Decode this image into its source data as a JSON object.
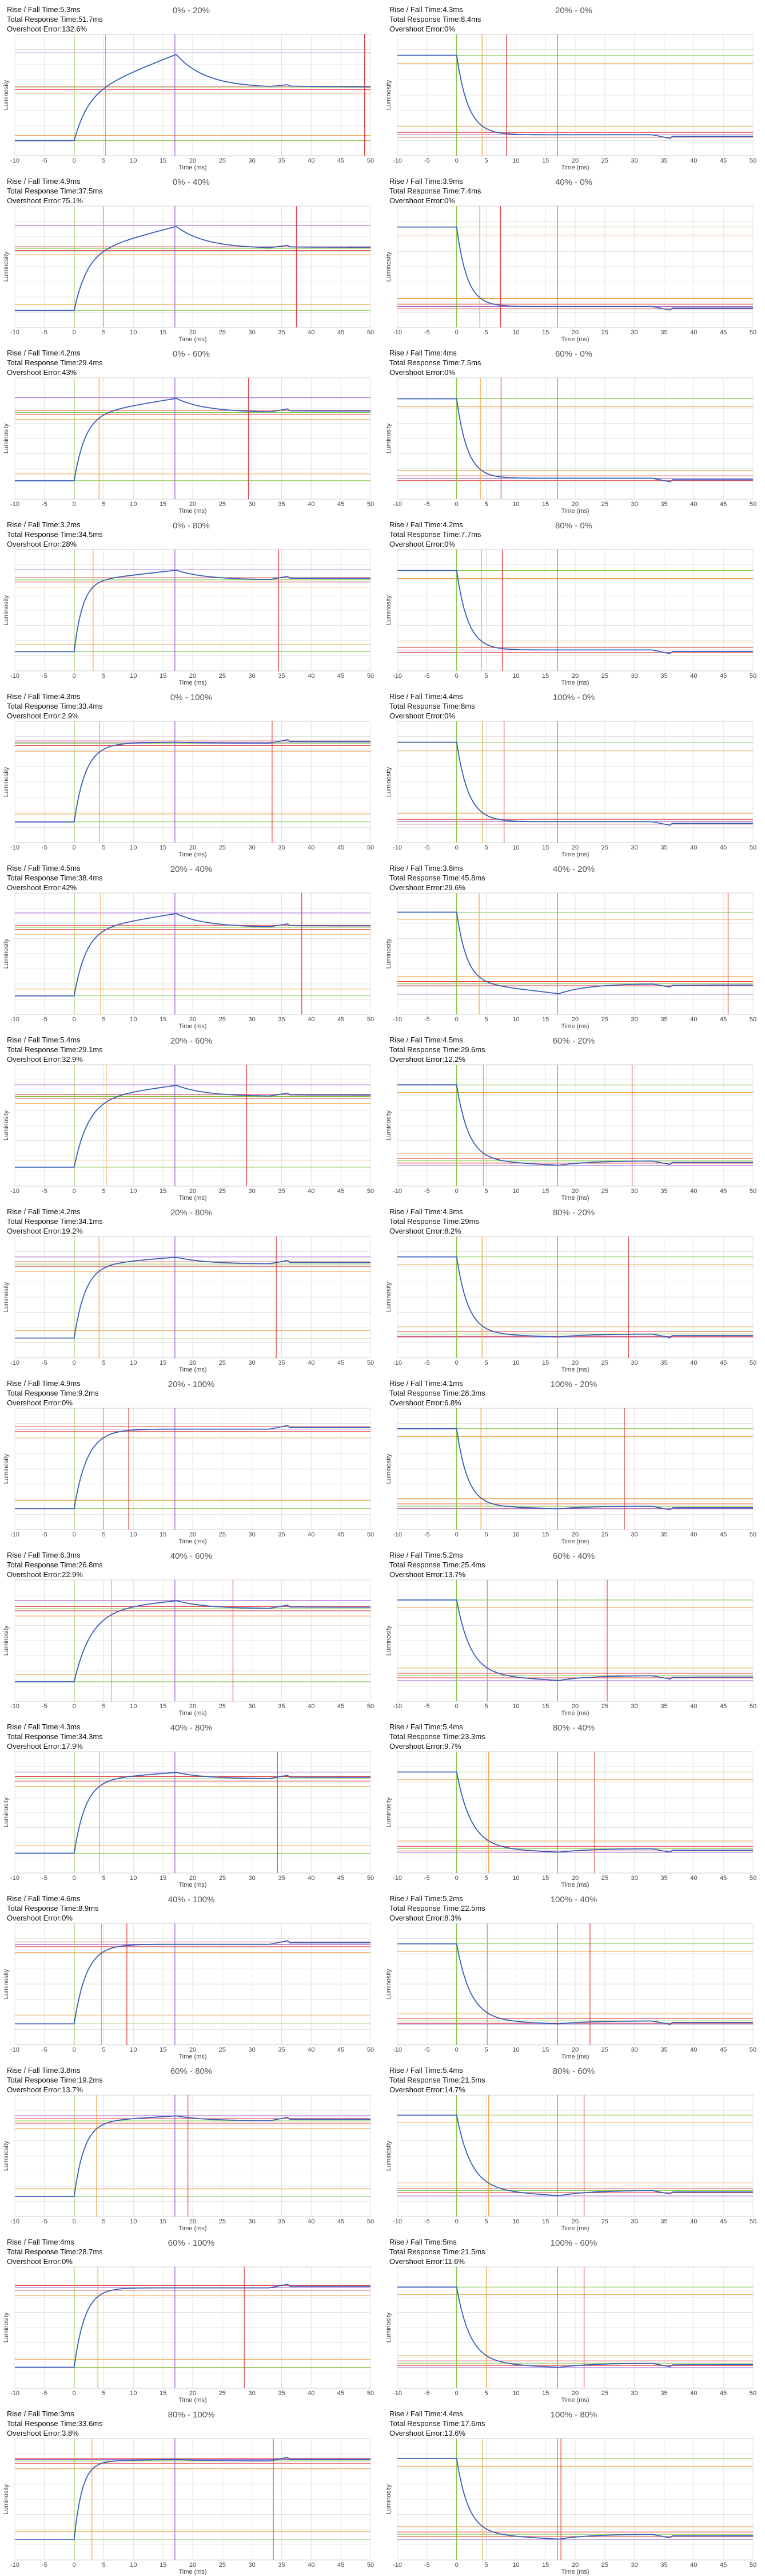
{
  "axis": {
    "x_label": "Time (ms)",
    "y_label": "Luminosity",
    "x_ticks": [
      -10,
      -5,
      0,
      5,
      10,
      15,
      20,
      25,
      30,
      35,
      40,
      45,
      50
    ],
    "xlim": [
      -10,
      50
    ]
  },
  "labels": {
    "rise": "Rise / Fall Time:",
    "total": "Total Response Time:",
    "overshoot": "Overshoot Error:"
  },
  "colors": {
    "curve": "#3a5fb8",
    "green": "#7cc23a",
    "orange": "#f0a040",
    "red": "#e03a3a",
    "purple": "#9a5fd0",
    "grid": "#e3e3e3"
  },
  "chart_data": [
    {
      "type": "line",
      "title": "0% - 20%",
      "rise": "5.3ms",
      "total": "51.7ms",
      "overshoot": "132.6%",
      "from": 0,
      "to": 20
    },
    {
      "type": "line",
      "title": "20% - 0%",
      "rise": "4.3ms",
      "total": "8.4ms",
      "overshoot": "0%",
      "from": 20,
      "to": 0
    },
    {
      "type": "line",
      "title": "0% - 40%",
      "rise": "4.9ms",
      "total": "37.5ms",
      "overshoot": "75.1%",
      "from": 0,
      "to": 40
    },
    {
      "type": "line",
      "title": "40% - 0%",
      "rise": "3.9ms",
      "total": "7.4ms",
      "overshoot": "0%",
      "from": 40,
      "to": 0
    },
    {
      "type": "line",
      "title": "0% - 60%",
      "rise": "4.2ms",
      "total": "29.4ms",
      "overshoot": "43%",
      "from": 0,
      "to": 60
    },
    {
      "type": "line",
      "title": "60% - 0%",
      "rise": "4ms",
      "total": "7.5ms",
      "overshoot": "0%",
      "from": 60,
      "to": 0
    },
    {
      "type": "line",
      "title": "0% - 80%",
      "rise": "3.2ms",
      "total": "34.5ms",
      "overshoot": "28%",
      "from": 0,
      "to": 80
    },
    {
      "type": "line",
      "title": "80% - 0%",
      "rise": "4.2ms",
      "total": "7.7ms",
      "overshoot": "0%",
      "from": 80,
      "to": 0
    },
    {
      "type": "line",
      "title": "0% - 100%",
      "rise": "4.3ms",
      "total": "33.4ms",
      "overshoot": "2.9%",
      "from": 0,
      "to": 100
    },
    {
      "type": "line",
      "title": "100% - 0%",
      "rise": "4.4ms",
      "total": "8ms",
      "overshoot": "0%",
      "from": 100,
      "to": 0
    },
    {
      "type": "line",
      "title": "20% - 40%",
      "rise": "4.5ms",
      "total": "38.4ms",
      "overshoot": "42%",
      "from": 20,
      "to": 40
    },
    {
      "type": "line",
      "title": "40% - 20%",
      "rise": "3.8ms",
      "total": "45.8ms",
      "overshoot": "29.6%",
      "from": 40,
      "to": 20
    },
    {
      "type": "line",
      "title": "20% - 60%",
      "rise": "5.4ms",
      "total": "29.1ms",
      "overshoot": "32.9%",
      "from": 20,
      "to": 60
    },
    {
      "type": "line",
      "title": "60% - 20%",
      "rise": "4.5ms",
      "total": "29.6ms",
      "overshoot": "12.2%",
      "from": 60,
      "to": 20
    },
    {
      "type": "line",
      "title": "20% - 80%",
      "rise": "4.2ms",
      "total": "34.1ms",
      "overshoot": "19.2%",
      "from": 20,
      "to": 80
    },
    {
      "type": "line",
      "title": "80% - 20%",
      "rise": "4.3ms",
      "total": "29ms",
      "overshoot": "8.2%",
      "from": 80,
      "to": 20
    },
    {
      "type": "line",
      "title": "20% - 100%",
      "rise": "4.9ms",
      "total": "9.2ms",
      "overshoot": "0%",
      "from": 20,
      "to": 100
    },
    {
      "type": "line",
      "title": "100% - 20%",
      "rise": "4.1ms",
      "total": "28.3ms",
      "overshoot": "6.8%",
      "from": 100,
      "to": 20
    },
    {
      "type": "line",
      "title": "40% - 60%",
      "rise": "6.3ms",
      "total": "26.8ms",
      "overshoot": "22.9%",
      "from": 40,
      "to": 60
    },
    {
      "type": "line",
      "title": "60% - 40%",
      "rise": "5.2ms",
      "total": "25.4ms",
      "overshoot": "13.7%",
      "from": 60,
      "to": 40
    },
    {
      "type": "line",
      "title": "40% - 80%",
      "rise": "4.3ms",
      "total": "34.3ms",
      "overshoot": "17.9%",
      "from": 40,
      "to": 80
    },
    {
      "type": "line",
      "title": "80% - 40%",
      "rise": "5.4ms",
      "total": "23.3ms",
      "overshoot": "9.7%",
      "from": 80,
      "to": 40
    },
    {
      "type": "line",
      "title": "40% - 100%",
      "rise": "4.6ms",
      "total": "8.9ms",
      "overshoot": "0%",
      "from": 40,
      "to": 100
    },
    {
      "type": "line",
      "title": "100% - 40%",
      "rise": "5.2ms",
      "total": "22.5ms",
      "overshoot": "8.3%",
      "from": 100,
      "to": 40
    },
    {
      "type": "line",
      "title": "60% - 80%",
      "rise": "3.8ms",
      "total": "19.2ms",
      "overshoot": "13.7%",
      "from": 60,
      "to": 80
    },
    {
      "type": "line",
      "title": "80% - 60%",
      "rise": "5.4ms",
      "total": "21.5ms",
      "overshoot": "14.7%",
      "from": 80,
      "to": 60
    },
    {
      "type": "line",
      "title": "60% - 100%",
      "rise": "4ms",
      "total": "28.7ms",
      "overshoot": "0%",
      "from": 60,
      "to": 100
    },
    {
      "type": "line",
      "title": "100% - 60%",
      "rise": "5ms",
      "total": "21.5ms",
      "overshoot": "11.6%",
      "from": 100,
      "to": 60
    },
    {
      "type": "line",
      "title": "80% - 100%",
      "rise": "3ms",
      "total": "33.6ms",
      "overshoot": "3.8%",
      "from": 80,
      "to": 100
    },
    {
      "type": "line",
      "title": "100% - 80%",
      "rise": "4.4ms",
      "total": "17.6ms",
      "overshoot": "13.6%",
      "from": 100,
      "to": 80
    }
  ]
}
